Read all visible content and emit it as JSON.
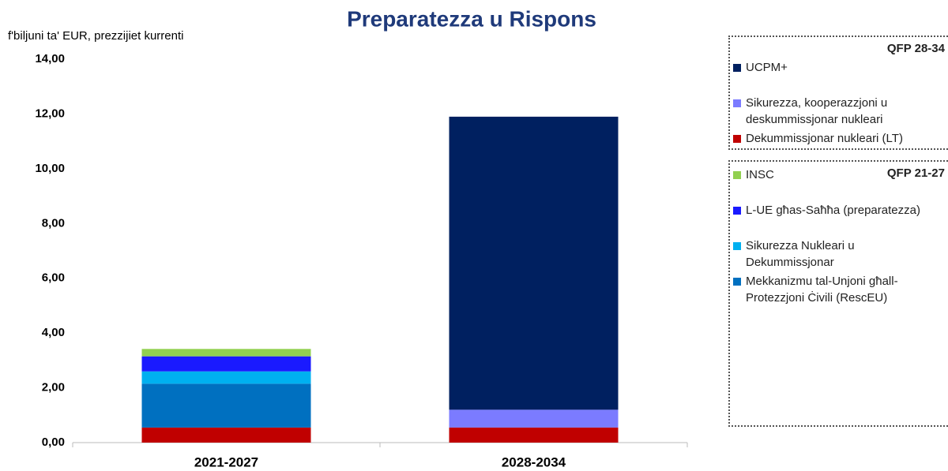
{
  "chart_data": {
    "type": "stacked_bar",
    "title": "Preparatezza u Rispons",
    "y_label": "f'biljuni ta' EUR, prezzijiet kurrenti",
    "categories": [
      "2021-2027",
      "2028-2034"
    ],
    "series": [
      {
        "name": "Dekummissjonar nukleari (LT)",
        "color": "#c00000",
        "values": [
          0.55,
          0.55
        ]
      },
      {
        "name": "Mekkanizmu tal-Unjoni għall-Protezzjoni Ċivili (RescEU)",
        "color": "#0070c0",
        "values": [
          1.6,
          0
        ]
      },
      {
        "name": "Sikurezza Nukleari u Dekummissjonar",
        "color": "#00b0f0",
        "values": [
          0.45,
          0
        ]
      },
      {
        "name": "L-UE għas-Saħħa (preparatezza)",
        "color": "#1a1aff",
        "values": [
          0.55,
          0
        ]
      },
      {
        "name": "INSC",
        "color": "#92d050",
        "values": [
          0.27,
          0
        ]
      },
      {
        "name": "Sikurezza, kooperazzjoni u deskummissjonar nukleari",
        "color": "#7b7bff",
        "values": [
          0,
          0.65
        ]
      },
      {
        "name": "UCPM+",
        "color": "#002060",
        "values": [
          0,
          10.7
        ]
      }
    ],
    "legend_groups": [
      {
        "title": "QFP 28-34",
        "members": [
          6,
          5,
          0
        ]
      },
      {
        "title": "QFP 21-27",
        "members": [
          4,
          3,
          2,
          1
        ]
      }
    ],
    "ylim": [
      0,
      14
    ],
    "yticks": [
      {
        "value": 0,
        "label": "0,00"
      },
      {
        "value": 2,
        "label": "2,00"
      },
      {
        "value": 4,
        "label": "4,00"
      },
      {
        "value": 6,
        "label": "6,00"
      },
      {
        "value": 8,
        "label": "8,00"
      },
      {
        "value": 10,
        "label": "10,00"
      },
      {
        "value": 12,
        "label": "12,00"
      },
      {
        "value": 14,
        "label": "14,00"
      }
    ]
  }
}
